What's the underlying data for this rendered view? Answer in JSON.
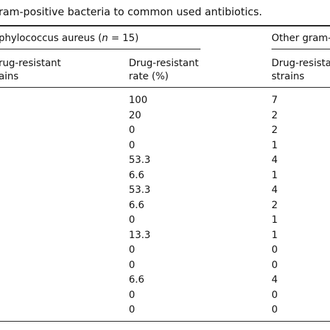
{
  "caption": "ram-positive bacteria to common used antibiotics.",
  "group1": {
    "label_prefix": "phylococcus aureus (",
    "n_var": "n",
    "label_suffix": " = 15)"
  },
  "group2": {
    "label": "Other gram-"
  },
  "columns": {
    "g1_strains": [
      "rug-resistant",
      "ains"
    ],
    "g1_rate": [
      "Drug-resistant",
      "rate (%)"
    ],
    "g2_strains": [
      "Drug-resistan",
      "strains"
    ]
  },
  "rows": [
    {
      "rate": "100",
      "other": "7"
    },
    {
      "rate": "20",
      "other": "2"
    },
    {
      "rate": "0",
      "other": "2"
    },
    {
      "rate": "0",
      "other": "1"
    },
    {
      "rate": "53.3",
      "other": "4"
    },
    {
      "rate": "6.6",
      "other": "1"
    },
    {
      "rate": "53.3",
      "other": "4"
    },
    {
      "rate": "6.6",
      "other": "2"
    },
    {
      "rate": "0",
      "other": "1"
    },
    {
      "rate": "13.3",
      "other": "1"
    },
    {
      "rate": "0",
      "other": "0"
    },
    {
      "rate": "0",
      "other": "0"
    },
    {
      "rate": "6.6",
      "other": "4"
    },
    {
      "rate": "0",
      "other": "0"
    },
    {
      "rate": "0",
      "other": "0"
    }
  ]
}
